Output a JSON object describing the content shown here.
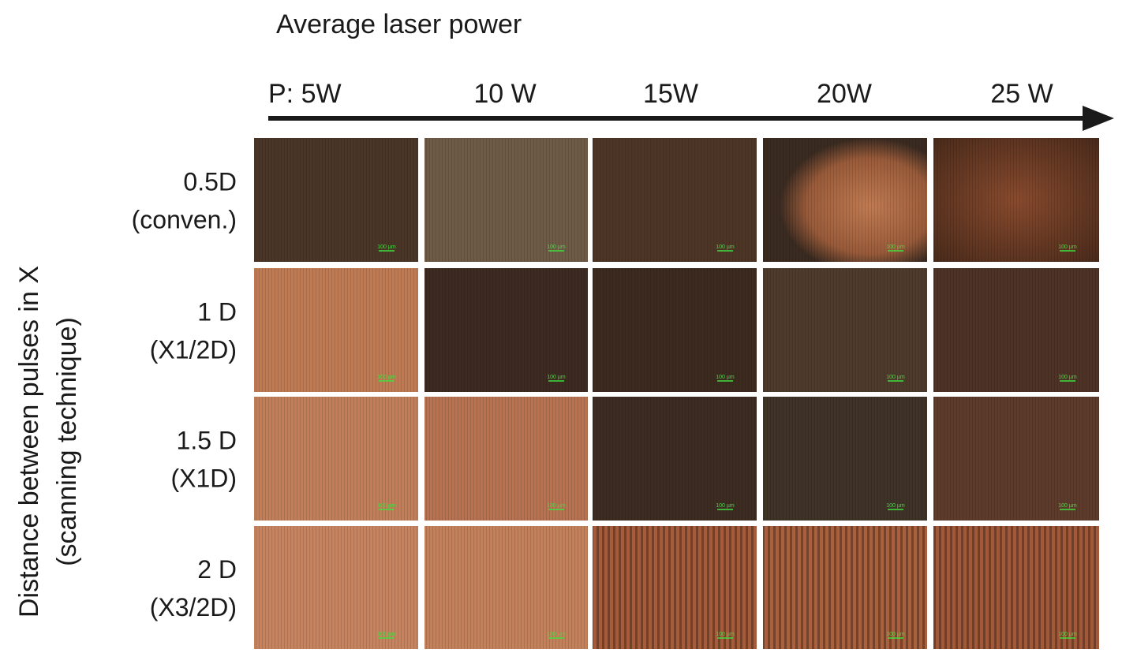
{
  "title": "Average laser power",
  "columns": [
    "P: 5W",
    "10 W",
    "15W",
    "20W",
    "25 W"
  ],
  "rows": [
    {
      "line1": "0.5D",
      "line2": "(conven.)"
    },
    {
      "line1": "1 D",
      "line2": "(X1/2D)"
    },
    {
      "line1": "1.5 D",
      "line2": "(X1D)"
    },
    {
      "line1": "2 D",
      "line2": "(X3/2D)"
    }
  ],
  "y_axis_label": [
    "Distance between pulses in X",
    "(scanning technique)"
  ],
  "scale_bar": "100 µm"
}
